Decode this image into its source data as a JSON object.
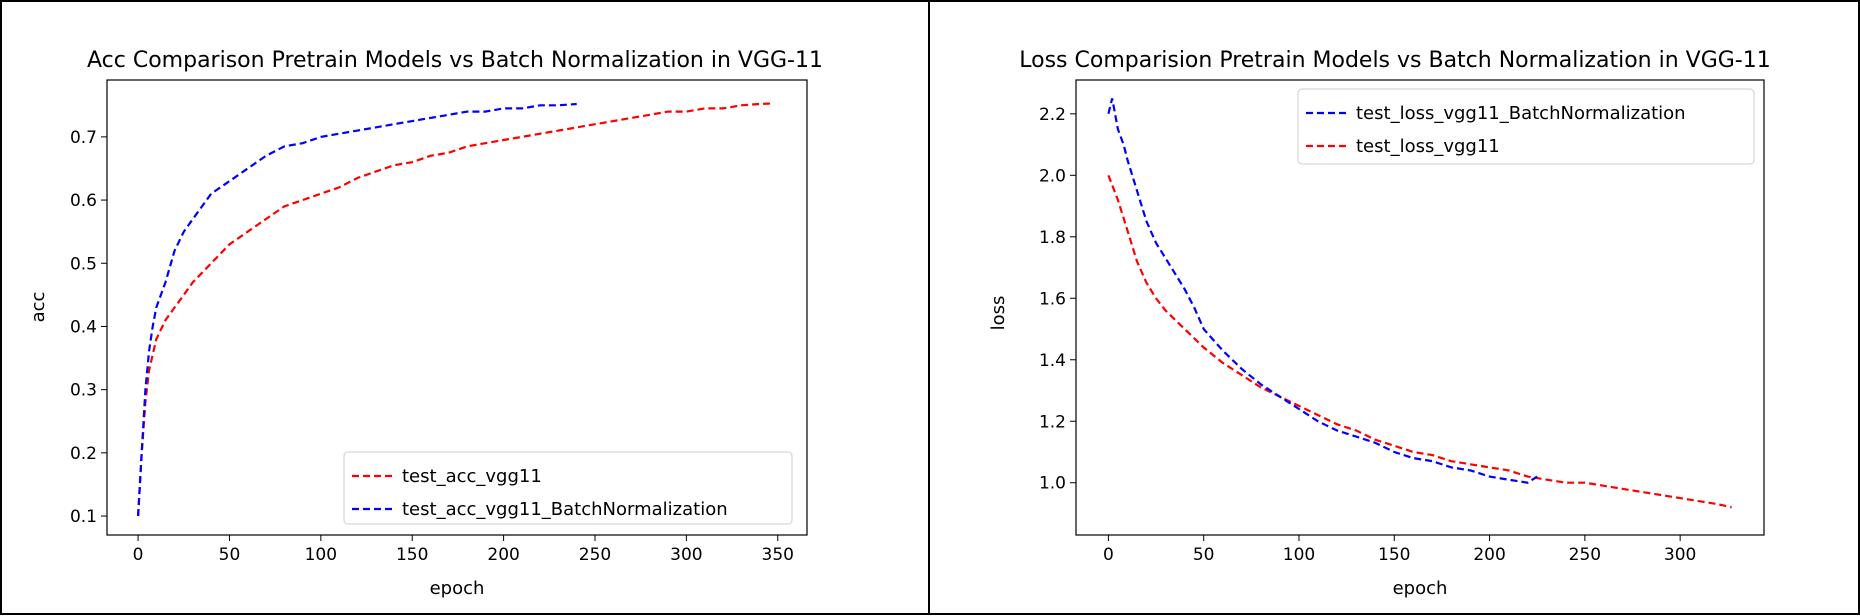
{
  "chart_data": [
    {
      "type": "line",
      "title": "Acc Comparison Pretrain Models vs Batch Normalization in VGG-11",
      "xlabel": "epoch",
      "ylabel": "acc",
      "xlim": [
        -17,
        366
      ],
      "ylim": [
        0.07,
        0.79
      ],
      "xticks": [
        0,
        50,
        100,
        150,
        200,
        250,
        300,
        350
      ],
      "yticks": [
        0.1,
        0.2,
        0.3,
        0.4,
        0.5,
        0.6,
        0.7
      ],
      "xtick_labels": [
        "0",
        "50",
        "100",
        "150",
        "200",
        "250",
        "300",
        "350"
      ],
      "ytick_labels": [
        "0.1",
        "0.2",
        "0.3",
        "0.4",
        "0.5",
        "0.6",
        "0.7"
      ],
      "grid": false,
      "legend_position": "lower-right",
      "legend_order": [
        0,
        1
      ],
      "series": [
        {
          "name": "test_acc_vgg11",
          "color": "#ff0000",
          "linestyle": "dashed",
          "x": [
            0,
            2,
            4,
            6,
            10,
            15,
            20,
            25,
            30,
            40,
            50,
            60,
            70,
            80,
            90,
            100,
            110,
            120,
            130,
            140,
            150,
            160,
            170,
            180,
            190,
            200,
            210,
            220,
            230,
            240,
            250,
            260,
            270,
            280,
            290,
            300,
            310,
            320,
            330,
            340,
            348
          ],
          "y": [
            0.1,
            0.2,
            0.28,
            0.33,
            0.38,
            0.41,
            0.43,
            0.45,
            0.47,
            0.5,
            0.53,
            0.55,
            0.57,
            0.59,
            0.6,
            0.61,
            0.62,
            0.635,
            0.645,
            0.655,
            0.66,
            0.67,
            0.675,
            0.685,
            0.69,
            0.695,
            0.7,
            0.705,
            0.71,
            0.715,
            0.72,
            0.725,
            0.73,
            0.735,
            0.74,
            0.74,
            0.745,
            0.745,
            0.75,
            0.752,
            0.753
          ]
        },
        {
          "name": "test_acc_vgg11_BatchNormalization",
          "color": "#0000ff",
          "linestyle": "dashed",
          "x": [
            0,
            2,
            4,
            6,
            8,
            10,
            15,
            20,
            25,
            30,
            40,
            50,
            60,
            70,
            80,
            90,
            100,
            110,
            120,
            130,
            140,
            150,
            160,
            170,
            180,
            190,
            200,
            210,
            220,
            230,
            240
          ],
          "y": [
            0.1,
            0.2,
            0.3,
            0.36,
            0.4,
            0.43,
            0.47,
            0.52,
            0.55,
            0.57,
            0.61,
            0.63,
            0.65,
            0.67,
            0.685,
            0.69,
            0.7,
            0.705,
            0.71,
            0.715,
            0.72,
            0.725,
            0.73,
            0.735,
            0.74,
            0.74,
            0.745,
            0.745,
            0.75,
            0.75,
            0.752
          ]
        }
      ]
    },
    {
      "type": "line",
      "title": "Loss Comparision Pretrain Models vs Batch Normalization in VGG-11",
      "xlabel": "epoch",
      "ylabel": "loss",
      "xlim": [
        -17,
        344
      ],
      "ylim": [
        0.83,
        2.31
      ],
      "xticks": [
        0,
        50,
        100,
        150,
        200,
        250,
        300
      ],
      "yticks": [
        1.0,
        1.2,
        1.4,
        1.6,
        1.8,
        2.0,
        2.2
      ],
      "xtick_labels": [
        "0",
        "50",
        "100",
        "150",
        "200",
        "250",
        "300"
      ],
      "ytick_labels": [
        "1.0",
        "1.2",
        "1.4",
        "1.6",
        "1.8",
        "2.0",
        "2.2"
      ],
      "grid": false,
      "legend_position": "upper-right",
      "legend_order": [
        1,
        0
      ],
      "series": [
        {
          "name": "test_loss_vgg11",
          "color": "#ff0000",
          "linestyle": "dashed",
          "x": [
            0,
            5,
            10,
            15,
            20,
            25,
            30,
            40,
            50,
            60,
            70,
            80,
            90,
            100,
            110,
            120,
            130,
            140,
            150,
            160,
            170,
            180,
            190,
            200,
            210,
            220,
            230,
            240,
            250,
            260,
            270,
            280,
            290,
            300,
            310,
            320,
            327
          ],
          "y": [
            2.0,
            1.92,
            1.82,
            1.72,
            1.65,
            1.6,
            1.56,
            1.5,
            1.44,
            1.39,
            1.35,
            1.31,
            1.28,
            1.25,
            1.22,
            1.19,
            1.17,
            1.14,
            1.12,
            1.1,
            1.09,
            1.07,
            1.06,
            1.05,
            1.04,
            1.02,
            1.01,
            1.0,
            1.0,
            0.99,
            0.98,
            0.97,
            0.96,
            0.95,
            0.94,
            0.93,
            0.92
          ]
        },
        {
          "name": "test_loss_vgg11_BatchNormalization",
          "color": "#0000ff",
          "linestyle": "dashed",
          "x": [
            0,
            2,
            5,
            8,
            10,
            15,
            20,
            25,
            30,
            35,
            40,
            45,
            50,
            60,
            70,
            80,
            90,
            100,
            110,
            120,
            130,
            140,
            150,
            160,
            170,
            180,
            190,
            200,
            210,
            220,
            225
          ],
          "y": [
            2.2,
            2.25,
            2.15,
            2.1,
            2.05,
            1.95,
            1.85,
            1.78,
            1.73,
            1.68,
            1.63,
            1.57,
            1.5,
            1.43,
            1.37,
            1.32,
            1.28,
            1.24,
            1.2,
            1.17,
            1.15,
            1.13,
            1.1,
            1.08,
            1.07,
            1.05,
            1.04,
            1.02,
            1.01,
            1.0,
            1.02
          ]
        }
      ]
    }
  ]
}
